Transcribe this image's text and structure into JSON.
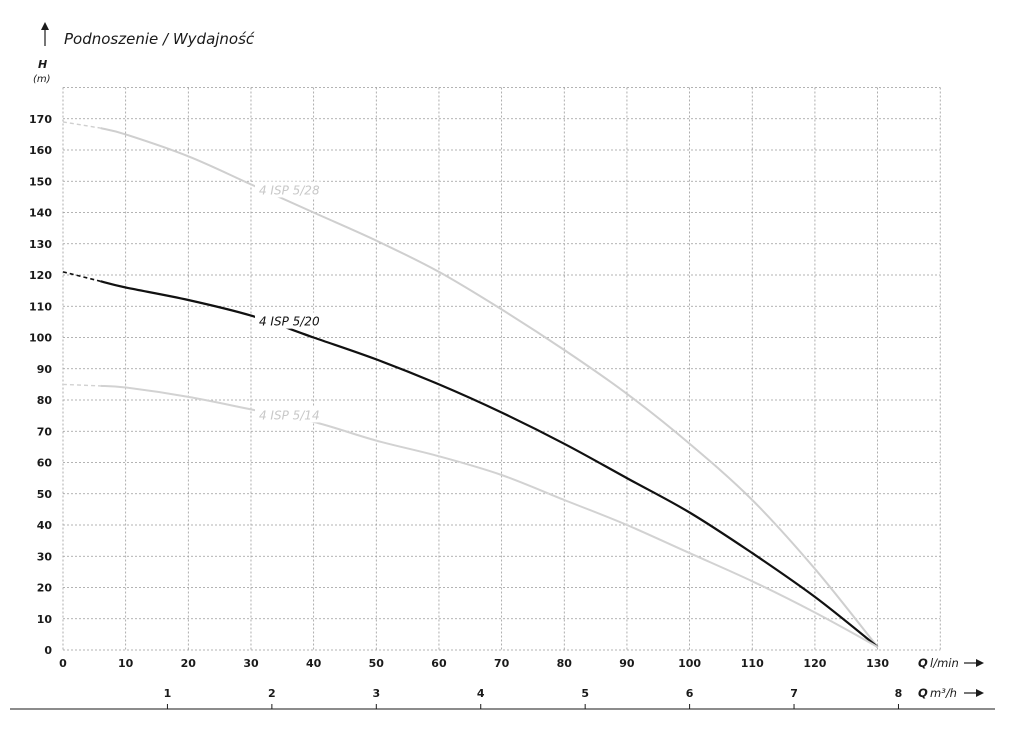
{
  "chart_data": {
    "type": "line",
    "title": "Podnoszenie / Wydajność",
    "ylabel": "H",
    "yunit": "(m)",
    "xlabel_q": "Q",
    "xunit_lmin": "l/min",
    "xunit_m3h": "m³/h",
    "xlim": [
      0,
      140
    ],
    "ylim": [
      0,
      180
    ],
    "yticks": [
      0,
      10,
      20,
      30,
      40,
      50,
      60,
      70,
      80,
      90,
      100,
      110,
      120,
      130,
      140,
      150,
      160,
      170
    ],
    "xticks_lmin": [
      0,
      10,
      20,
      30,
      40,
      50,
      60,
      70,
      80,
      90,
      100,
      110,
      120,
      130
    ],
    "xticks_m3h": [
      1,
      2,
      3,
      4,
      5,
      6,
      7,
      8
    ],
    "grid": true,
    "series": [
      {
        "name": "4 ISP 5/28",
        "color": "#cfcfcf",
        "dashed_until": 6,
        "x": [
          0,
          6,
          10,
          20,
          30,
          40,
          50,
          60,
          70,
          80,
          90,
          100,
          110,
          120,
          130
        ],
        "y": [
          169,
          167,
          165,
          158,
          149,
          140,
          131,
          121,
          109,
          96,
          82,
          66,
          48,
          26,
          1
        ]
      },
      {
        "name": "4 ISP 5/20",
        "color": "#111111",
        "dashed_until": 6,
        "x": [
          0,
          6,
          10,
          20,
          30,
          40,
          50,
          60,
          70,
          80,
          90,
          100,
          110,
          120,
          130
        ],
        "y": [
          121,
          118,
          116,
          112,
          107,
          100,
          93,
          85,
          76,
          66,
          55,
          44,
          31,
          17,
          1
        ]
      },
      {
        "name": "4 ISP 5/14",
        "color": "#d2d2d2",
        "dashed_until": 6,
        "x": [
          0,
          6,
          10,
          20,
          30,
          40,
          50,
          60,
          70,
          80,
          90,
          100,
          110,
          120,
          130
        ],
        "y": [
          85,
          84.5,
          84,
          81,
          77,
          73,
          67,
          62,
          56,
          48,
          40,
          31,
          22,
          12,
          1
        ]
      }
    ]
  }
}
